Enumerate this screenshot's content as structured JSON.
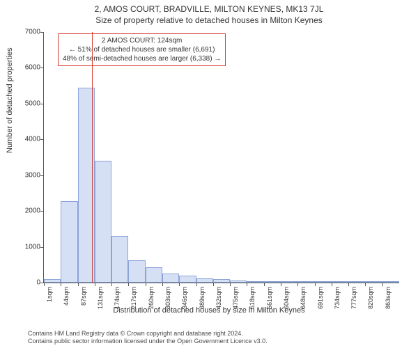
{
  "title": "2, AMOS COURT, BRADVILLE, MILTON KEYNES, MK13 7JL",
  "subtitle": "Size of property relative to detached houses in Milton Keynes",
  "chart": {
    "type": "histogram",
    "ylabel": "Number of detached properties",
    "xlabel": "Distribution of detached houses by size in Milton Keynes",
    "ylim": [
      0,
      7000
    ],
    "ytick_step": 1000,
    "x_start": 1,
    "x_bin_width": 43,
    "bar_fill": "#d6e0f5",
    "bar_border": "#8ca3d9",
    "axis_color": "#555555",
    "background_color": "#ffffff",
    "values": [
      90,
      2280,
      5450,
      3400,
      1300,
      620,
      420,
      260,
      190,
      120,
      90,
      60,
      40,
      30,
      25,
      20,
      15,
      12,
      10,
      8,
      6
    ],
    "xticks": [
      "1sqm",
      "44sqm",
      "87sqm",
      "131sqm",
      "174sqm",
      "217sqm",
      "260sqm",
      "303sqm",
      "346sqm",
      "389sqm",
      "432sqm",
      "475sqm",
      "518sqm",
      "561sqm",
      "604sqm",
      "648sqm",
      "691sqm",
      "734sqm",
      "777sqm",
      "820sqm",
      "863sqm"
    ]
  },
  "marker": {
    "color": "#d63a2f",
    "value_sqm": 124,
    "callout_line1": "2 AMOS COURT: 124sqm",
    "callout_line2": "← 51% of detached houses are smaller (6,691)",
    "callout_line3": "48% of semi-detached houses are larger (6,338) →"
  },
  "footer": {
    "line1": "Contains HM Land Registry data © Crown copyright and database right 2024.",
    "line2": "Contains public sector information licensed under the Open Government Licence v3.0."
  },
  "fonts": {
    "title_size_pt": 12,
    "label_size_pt": 11,
    "tick_size_pt": 10,
    "footer_size_pt": 9
  }
}
